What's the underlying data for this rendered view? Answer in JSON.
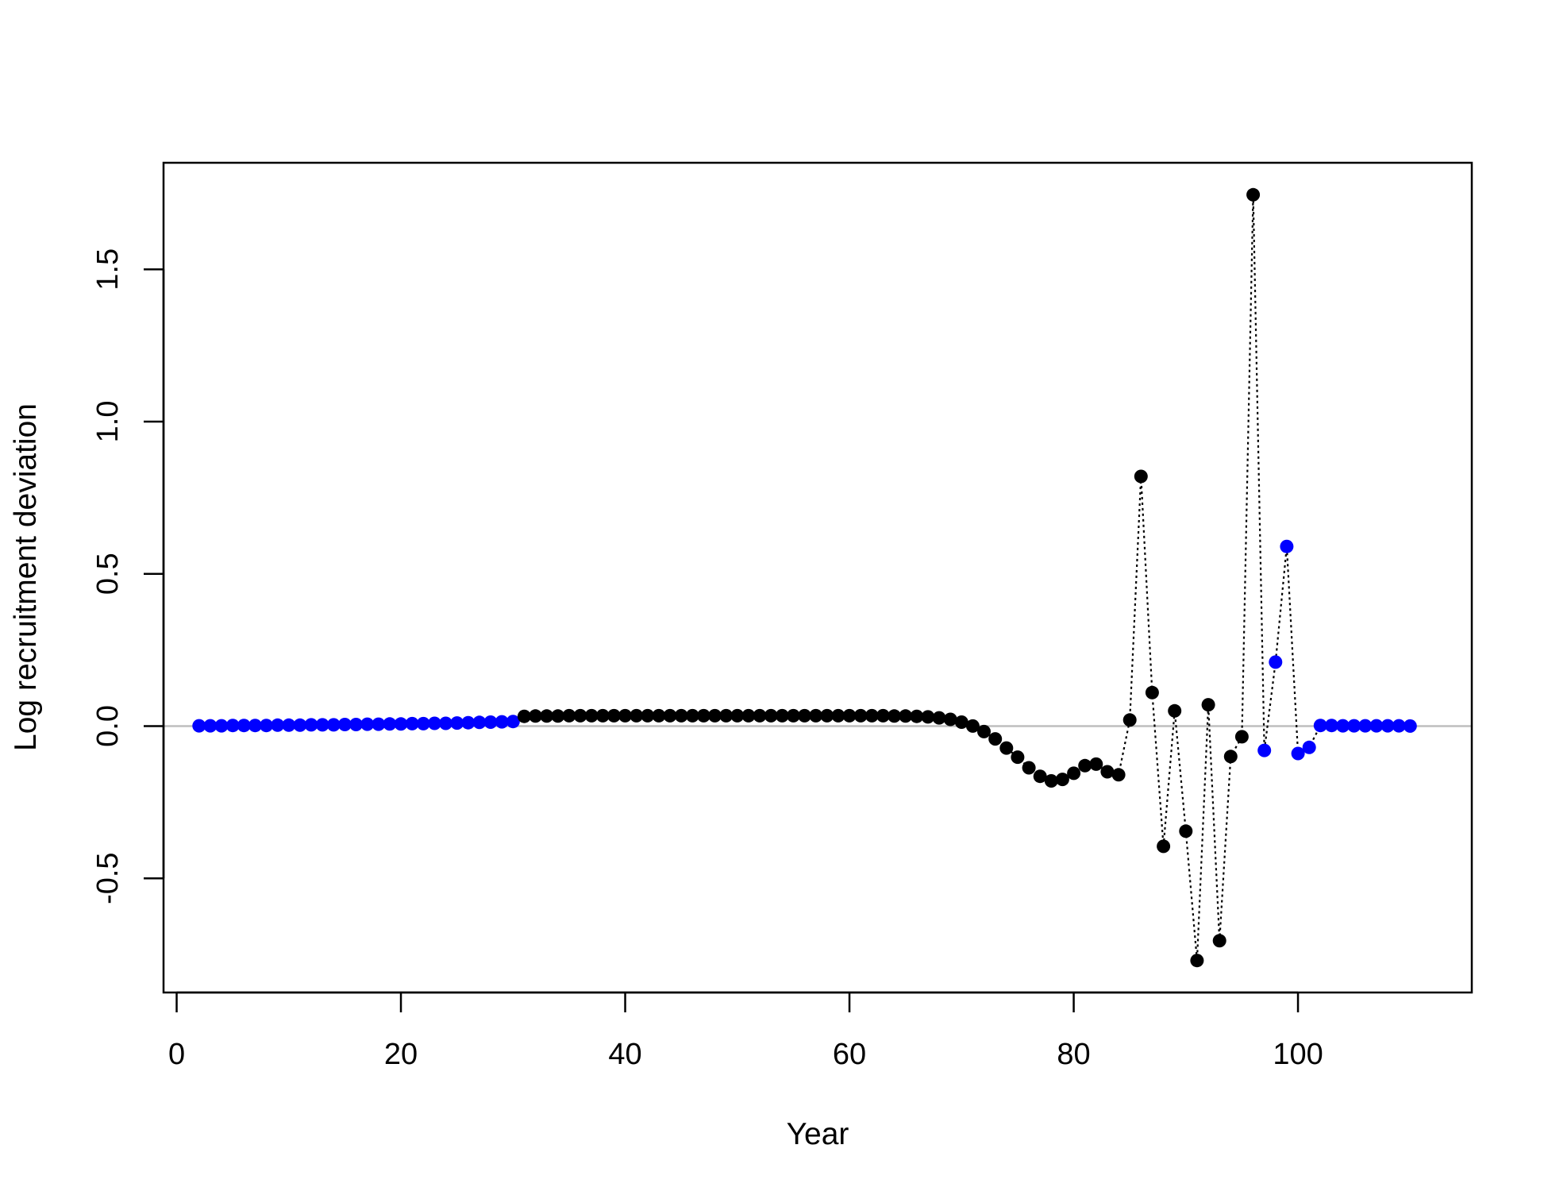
{
  "chart_data": {
    "type": "scatter",
    "title": "",
    "xlabel": "Year",
    "ylabel": "Log recruitment deviation",
    "xlim": [
      -1.17,
      115.5
    ],
    "ylim": [
      -0.875,
      1.85
    ],
    "xticks": [
      0,
      20,
      40,
      60,
      80,
      100
    ],
    "xtick_labels": [
      "0",
      "20",
      "40",
      "60",
      "80",
      "100"
    ],
    "yticks": [
      -0.5,
      0,
      0.5,
      1,
      1.5
    ],
    "ytick_labels": [
      "-0.5",
      "0.0",
      "0.5",
      "1.0",
      "1.5"
    ],
    "reference_line": {
      "y": 0,
      "color": "#bebebe"
    },
    "line_style": "dotted",
    "grid": false,
    "legend": "none",
    "colors": {
      "early_late": "#0000ff",
      "main": "#000000"
    },
    "x": [
      2,
      3,
      4,
      5,
      6,
      7,
      8,
      9,
      10,
      11,
      12,
      13,
      14,
      15,
      16,
      17,
      18,
      19,
      20,
      21,
      22,
      23,
      24,
      25,
      26,
      27,
      28,
      29,
      30,
      31,
      32,
      33,
      34,
      35,
      36,
      37,
      38,
      39,
      40,
      41,
      42,
      43,
      44,
      45,
      46,
      47,
      48,
      49,
      50,
      51,
      52,
      53,
      54,
      55,
      56,
      57,
      58,
      59,
      60,
      61,
      62,
      63,
      64,
      65,
      66,
      67,
      68,
      69,
      70,
      71,
      72,
      73,
      74,
      75,
      76,
      77,
      78,
      79,
      80,
      81,
      82,
      83,
      84,
      85,
      86,
      87,
      88,
      89,
      90,
      91,
      92,
      93,
      94,
      95,
      96,
      97,
      98,
      99,
      100,
      101,
      102,
      103,
      104,
      105,
      106,
      107,
      108,
      109,
      110
    ],
    "y": [
      0.001,
      0.001,
      0.001,
      0.002,
      0.002,
      0.002,
      0.002,
      0.003,
      0.003,
      0.003,
      0.004,
      0.004,
      0.004,
      0.005,
      0.005,
      0.006,
      0.006,
      0.007,
      0.007,
      0.008,
      0.008,
      0.009,
      0.009,
      0.01,
      0.011,
      0.012,
      0.013,
      0.014,
      0.015,
      0.032,
      0.033,
      0.033,
      0.033,
      0.034,
      0.034,
      0.034,
      0.034,
      0.034,
      0.034,
      0.034,
      0.034,
      0.034,
      0.034,
      0.034,
      0.034,
      0.034,
      0.034,
      0.034,
      0.034,
      0.034,
      0.034,
      0.034,
      0.034,
      0.034,
      0.034,
      0.034,
      0.034,
      0.034,
      0.034,
      0.034,
      0.034,
      0.034,
      0.033,
      0.033,
      0.032,
      0.03,
      0.027,
      0.022,
      0.013,
      0.0,
      -0.018,
      -0.042,
      -0.072,
      -0.102,
      -0.137,
      -0.165,
      -0.18,
      -0.175,
      -0.155,
      -0.13,
      -0.125,
      -0.15,
      -0.16,
      0.02,
      0.82,
      0.11,
      -0.395,
      0.05,
      -0.345,
      -0.77,
      0.07,
      -0.705,
      -0.1,
      -0.035,
      1.745,
      -0.08,
      0.21,
      0.59,
      -0.09,
      -0.07,
      0.002,
      0.002,
      0.001,
      0.001,
      0.001,
      0.001,
      0.001,
      0.001,
      0.0
    ],
    "point_colors": [
      "#0000ff",
      "#0000ff",
      "#0000ff",
      "#0000ff",
      "#0000ff",
      "#0000ff",
      "#0000ff",
      "#0000ff",
      "#0000ff",
      "#0000ff",
      "#0000ff",
      "#0000ff",
      "#0000ff",
      "#0000ff",
      "#0000ff",
      "#0000ff",
      "#0000ff",
      "#0000ff",
      "#0000ff",
      "#0000ff",
      "#0000ff",
      "#0000ff",
      "#0000ff",
      "#0000ff",
      "#0000ff",
      "#0000ff",
      "#0000ff",
      "#0000ff",
      "#0000ff",
      "#000000",
      "#000000",
      "#000000",
      "#000000",
      "#000000",
      "#000000",
      "#000000",
      "#000000",
      "#000000",
      "#000000",
      "#000000",
      "#000000",
      "#000000",
      "#000000",
      "#000000",
      "#000000",
      "#000000",
      "#000000",
      "#000000",
      "#000000",
      "#000000",
      "#000000",
      "#000000",
      "#000000",
      "#000000",
      "#000000",
      "#000000",
      "#000000",
      "#000000",
      "#000000",
      "#000000",
      "#000000",
      "#000000",
      "#000000",
      "#000000",
      "#000000",
      "#000000",
      "#000000",
      "#000000",
      "#000000",
      "#000000",
      "#000000",
      "#000000",
      "#000000",
      "#000000",
      "#000000",
      "#000000",
      "#000000",
      "#000000",
      "#000000",
      "#000000",
      "#000000",
      "#000000",
      "#000000",
      "#000000",
      "#000000",
      "#000000",
      "#000000",
      "#000000",
      "#000000",
      "#000000",
      "#000000",
      "#000000",
      "#000000",
      "#000000",
      "#000000",
      "#0000ff",
      "#0000ff",
      "#0000ff",
      "#0000ff",
      "#0000ff",
      "#0000ff",
      "#0000ff",
      "#0000ff",
      "#0000ff",
      "#0000ff",
      "#0000ff",
      "#0000ff",
      "#0000ff",
      "#0000ff"
    ]
  }
}
